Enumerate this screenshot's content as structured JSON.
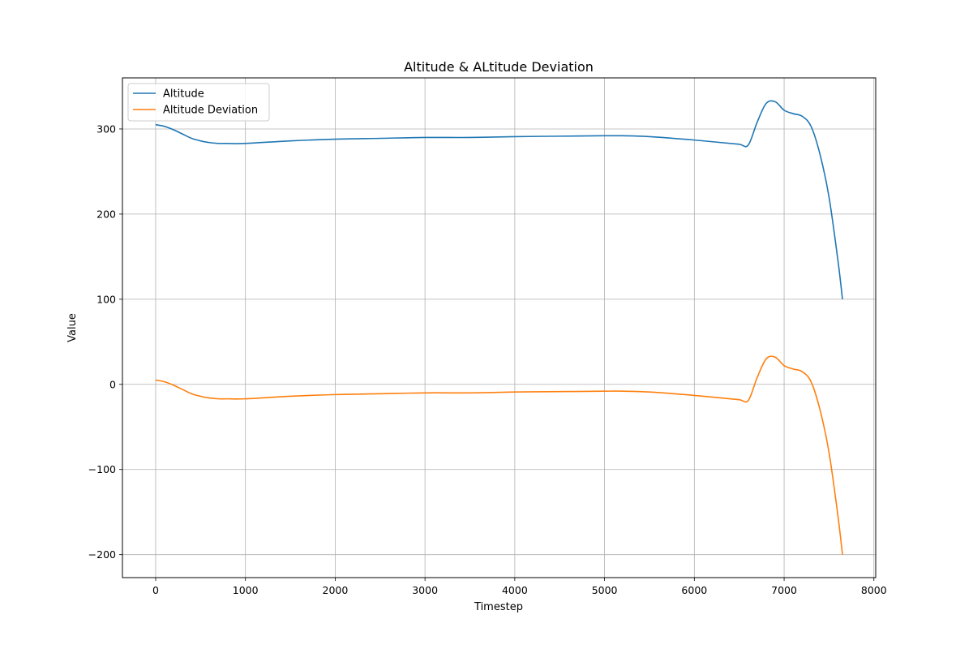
{
  "chart_data": {
    "type": "line",
    "title": "Altitude & ALtitude Deviation",
    "xlabel": "Timestep",
    "ylabel": "Value",
    "xlim": [
      -370,
      8020
    ],
    "ylim": [
      -227,
      360
    ],
    "xticks": [
      0,
      1000,
      2000,
      3000,
      4000,
      5000,
      6000,
      7000,
      8000
    ],
    "xtick_labels": [
      "0",
      "1000",
      "2000",
      "3000",
      "4000",
      "5000",
      "6000",
      "7000",
      "8000"
    ],
    "yticks": [
      -200,
      -100,
      0,
      100,
      200,
      300
    ],
    "ytick_labels": [
      "−200",
      "−100",
      "0",
      "100",
      "200",
      "300"
    ],
    "grid": true,
    "legend_position": "top-left",
    "series": [
      {
        "name": "Altitude",
        "color": "#1f77b4",
        "x": [
          0,
          100,
          200,
          300,
          400,
          500,
          600,
          700,
          800,
          1000,
          1500,
          2000,
          2500,
          3000,
          3500,
          4000,
          4500,
          5000,
          5200,
          5500,
          6000,
          6300,
          6500,
          6600,
          6700,
          6800,
          6900,
          7000,
          7100,
          7200,
          7300,
          7400,
          7500,
          7600,
          7650
        ],
        "y": [
          305,
          303,
          299,
          294,
          289,
          286,
          284,
          283,
          283,
          283,
          286,
          288,
          289,
          290,
          290,
          291,
          291.5,
          292,
          292,
          291,
          287,
          284,
          282,
          281,
          308,
          330,
          332,
          322,
          318,
          315,
          303,
          270,
          220,
          145,
          100
        ]
      },
      {
        "name": "Altitude Deviation",
        "color": "#ff7f0e",
        "x": [
          0,
          100,
          200,
          300,
          400,
          500,
          600,
          700,
          800,
          1000,
          1500,
          2000,
          2500,
          3000,
          3500,
          4000,
          4500,
          5000,
          5200,
          5500,
          6000,
          6300,
          6500,
          6600,
          6700,
          6800,
          6900,
          7000,
          7100,
          7200,
          7300,
          7400,
          7500,
          7600,
          7650
        ],
        "y": [
          5,
          3,
          -1,
          -6,
          -11,
          -14,
          -16,
          -17,
          -17,
          -17,
          -14,
          -12,
          -11,
          -10,
          -10,
          -9,
          -8.5,
          -8,
          -8,
          -9,
          -13,
          -16,
          -18,
          -19,
          8,
          30,
          32,
          22,
          18,
          15,
          3,
          -30,
          -80,
          -155,
          -200
        ]
      }
    ]
  }
}
